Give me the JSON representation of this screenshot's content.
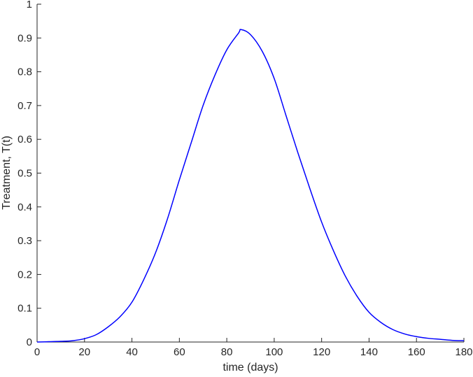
{
  "chart_data": {
    "type": "line",
    "title": "",
    "xlabel": "time (days)",
    "ylabel": "Treatment, T(t)",
    "xlim": [
      0,
      180
    ],
    "ylim": [
      0,
      1
    ],
    "grid": false,
    "xticks": [
      0,
      20,
      40,
      60,
      80,
      100,
      120,
      140,
      160,
      180
    ],
    "yticks": [
      0,
      0.1,
      0.2,
      0.3,
      0.4,
      0.5,
      0.6,
      0.7,
      0.8,
      0.9,
      1
    ],
    "ytick_labels": [
      "0",
      "0.1",
      "0.2",
      "0.3",
      "0.4",
      "0.5",
      "0.6",
      "0.7",
      "0.8",
      "0.9",
      "1"
    ],
    "series": [
      {
        "color": "#0000ff",
        "x": [
          0,
          5,
          10,
          15,
          20,
          25,
          30,
          35,
          40,
          45,
          50,
          55,
          60,
          65,
          70,
          75,
          80,
          85,
          86,
          90,
          95,
          100,
          105,
          110,
          115,
          120,
          125,
          130,
          135,
          140,
          145,
          150,
          155,
          160,
          165,
          170,
          175,
          180
        ],
        "y": [
          0.0,
          0.001,
          0.002,
          0.004,
          0.01,
          0.022,
          0.045,
          0.075,
          0.118,
          0.185,
          0.265,
          0.365,
          0.48,
          0.59,
          0.7,
          0.79,
          0.865,
          0.915,
          0.925,
          0.91,
          0.86,
          0.78,
          0.67,
          0.56,
          0.455,
          0.355,
          0.27,
          0.195,
          0.135,
          0.088,
          0.058,
          0.037,
          0.024,
          0.016,
          0.011,
          0.008,
          0.005,
          0.004
        ]
      }
    ]
  }
}
